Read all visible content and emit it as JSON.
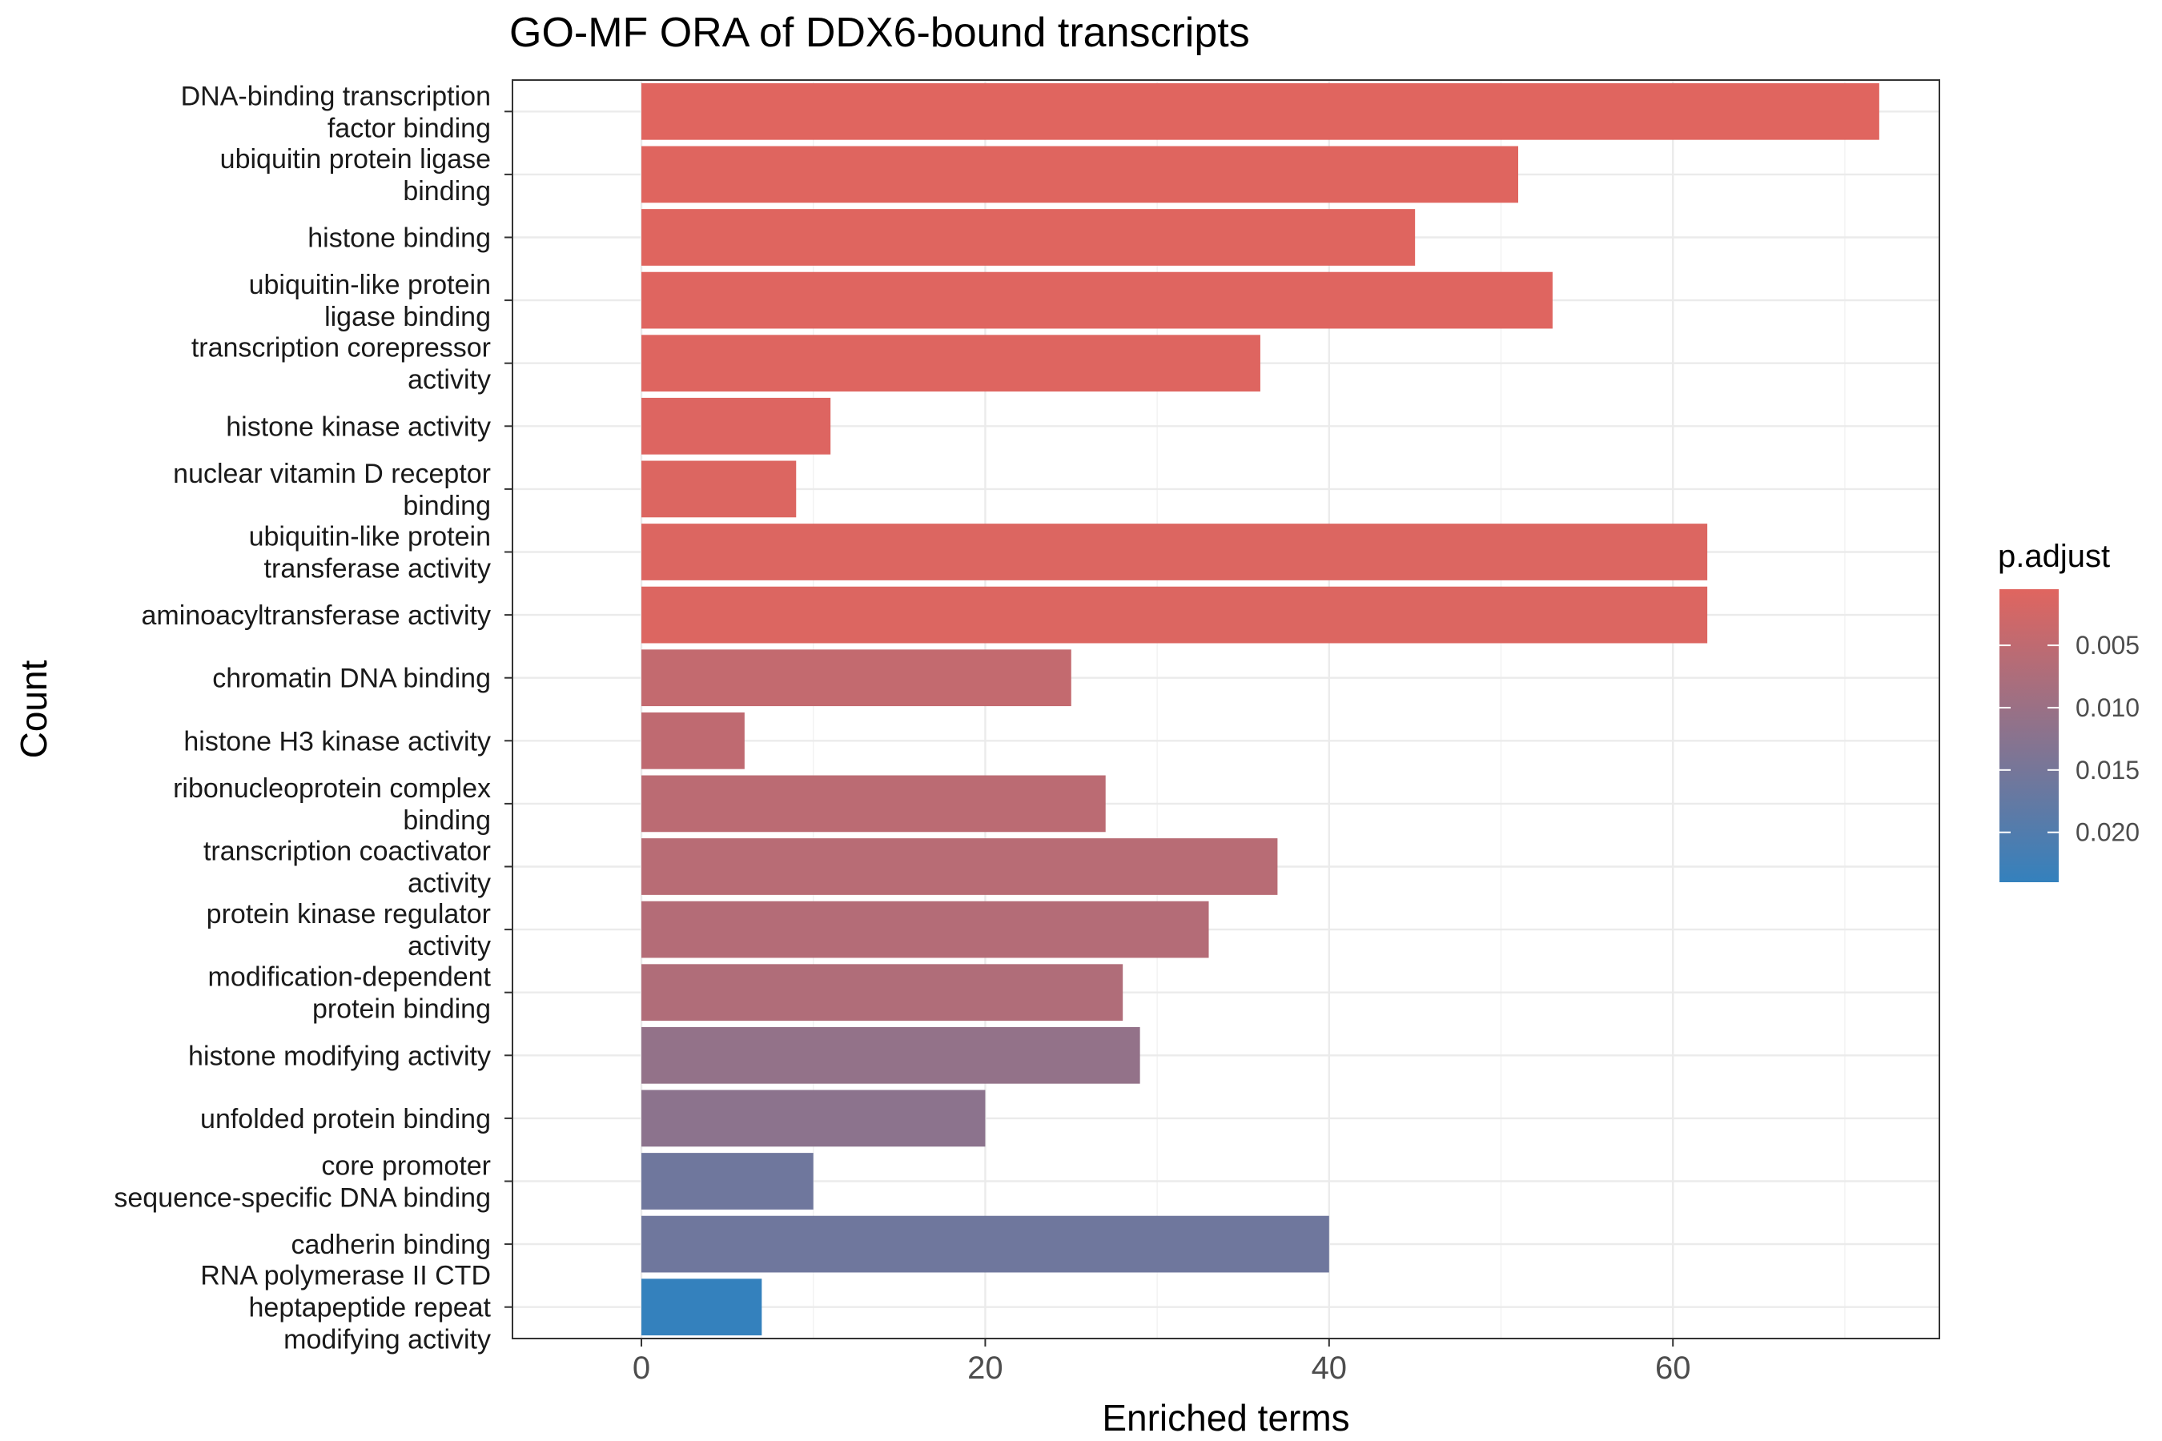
{
  "chart_data": {
    "type": "bar",
    "orientation": "horizontal",
    "title": "GO-MF ORA of DDX6-bound transcripts",
    "xlabel": "Enriched terms",
    "ylabel": "Count",
    "xlim": [
      -7.5,
      75.5
    ],
    "x_ticks": [
      0,
      20,
      40,
      60
    ],
    "grid": true,
    "legend_position": "right",
    "categories": [
      "DNA-binding transcription\nfactor binding",
      "ubiquitin protein ligase\nbinding",
      "histone binding",
      "ubiquitin-like protein\nligase binding",
      "transcription corepressor\nactivity",
      "histone kinase activity",
      "nuclear vitamin D receptor\nbinding",
      "ubiquitin-like protein\ntransferase activity",
      "aminoacyltransferase activity",
      "chromatin DNA binding",
      "histone H3 kinase activity",
      "ribonucleoprotein complex\nbinding",
      "transcription coactivator\nactivity",
      "protein kinase regulator\nactivity",
      "modification-dependent\nprotein binding",
      "histone modifying activity",
      "unfolded protein binding",
      "core promoter\nsequence-specific DNA binding",
      "cadherin binding",
      "RNA polymerase II CTD\nheptapeptide repeat\nmodifying activity"
    ],
    "values": [
      72,
      51,
      45,
      53,
      36,
      11,
      9,
      62,
      62,
      25,
      6,
      27,
      37,
      33,
      28,
      29,
      20,
      10,
      40,
      7
    ],
    "p_adjust": [
      0.0005,
      0.0006,
      0.0006,
      0.0007,
      0.0008,
      0.0009,
      0.001,
      0.0011,
      0.0011,
      0.0045,
      0.005,
      0.0055,
      0.006,
      0.0065,
      0.007,
      0.011,
      0.012,
      0.016,
      0.016,
      0.024
    ],
    "color_scale": {
      "title": "p.adjust",
      "low_color": "#e0655f",
      "high_color": "#3481bd",
      "domain": [
        0.0005,
        0.024
      ],
      "ticks": [
        0.005,
        0.01,
        0.015,
        0.02
      ],
      "tick_labels": [
        "0.005",
        "0.010",
        "0.015",
        "0.020"
      ]
    }
  }
}
